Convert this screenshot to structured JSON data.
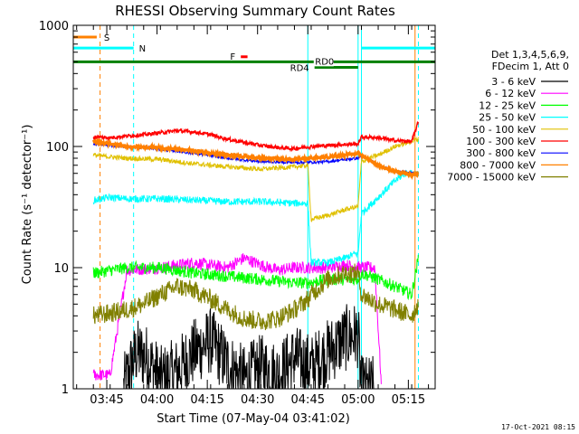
{
  "chart_data": {
    "type": "line",
    "title": "RHESSI Observing Summary Count Rates",
    "xlabel": "Start Time (07-May-04 03:41:02)",
    "ylabel": "Count Rate (s⁻¹ detector⁻¹)",
    "x_units": "minutes since 03:41:02",
    "xlim": [
      -6,
      102
    ],
    "ylim": [
      1,
      1000
    ],
    "yscale": "log",
    "x_ticks": [
      {
        "t": 4,
        "label": "03:45"
      },
      {
        "t": 19,
        "label": "04:00"
      },
      {
        "t": 34,
        "label": "04:15"
      },
      {
        "t": 49,
        "label": "04:30"
      },
      {
        "t": 64,
        "label": "04:45"
      },
      {
        "t": 79,
        "label": "05:00"
      },
      {
        "t": 94,
        "label": "05:15"
      }
    ],
    "y_ticks": [
      {
        "v": 1,
        "label": "1"
      },
      {
        "v": 10,
        "label": "10"
      },
      {
        "v": 100,
        "label": "100"
      },
      {
        "v": 1000,
        "label": "1000"
      }
    ],
    "legend": {
      "placement": "right",
      "header": [
        "Det 1,3,4,5,6,9,",
        "FDecim 1, Att 0"
      ],
      "entries": [
        {
          "label": "3 - 6 keV",
          "color": "#000000"
        },
        {
          "label": "6 - 12 keV",
          "color": "#ff00ff"
        },
        {
          "label": "12 - 25 keV",
          "color": "#00ff00"
        },
        {
          "label": "25 - 50 keV",
          "color": "#00ffff"
        },
        {
          "label": "50 - 100 keV",
          "color": "#e0c000"
        },
        {
          "label": "100 - 300 keV",
          "color": "#ff0000"
        },
        {
          "label": "300 - 800 keV",
          "color": "#0000ff"
        },
        {
          "label": "800 - 7000 keV",
          "color": "#ff8000"
        },
        {
          "label": "7000 - 15000 keV",
          "color": "#808000"
        }
      ]
    },
    "series": [
      {
        "name": "3 - 6 keV",
        "color": "#000000",
        "x": [
          9,
          11,
          13,
          16,
          20,
          25,
          30,
          35,
          40,
          45,
          50,
          55,
          60,
          65,
          70,
          75,
          79,
          80,
          84
        ],
        "y": [
          1,
          1.5,
          2,
          1.8,
          1.2,
          1.4,
          2.0,
          2.5,
          1.6,
          1.2,
          1.5,
          1.3,
          1.8,
          1.5,
          2.0,
          2.6,
          2.8,
          1,
          1
        ]
      },
      {
        "name": "6 - 12 keV",
        "color": "#ff00ff",
        "x": [
          0,
          5,
          10,
          20,
          30,
          40,
          45,
          50,
          55,
          60,
          64,
          70,
          75,
          80,
          84,
          86
        ],
        "y": [
          1.3,
          1.3,
          9.5,
          10,
          11,
          10,
          12,
          10.5,
          9.5,
          10,
          10,
          10,
          10.5,
          10,
          10,
          1
        ]
      },
      {
        "name": "12 - 25 keV",
        "color": "#00ff00",
        "x": [
          0,
          5,
          10,
          20,
          30,
          40,
          50,
          60,
          64,
          70,
          75,
          79,
          80,
          85,
          90,
          95,
          97
        ],
        "y": [
          9,
          9.5,
          10,
          10,
          9,
          8.5,
          8,
          7.5,
          7.5,
          8,
          8,
          8,
          9,
          8,
          7,
          6,
          12
        ]
      },
      {
        "name": "25 - 50 keV",
        "color": "#00ffff",
        "x": [
          0,
          5,
          10,
          20,
          30,
          40,
          50,
          60,
          64,
          65,
          70,
          75,
          78,
          79,
          80,
          85,
          90,
          93,
          97
        ],
        "y": [
          36,
          38,
          37,
          37,
          36,
          35,
          35,
          34,
          34,
          11,
          11,
          12,
          13,
          13,
          28,
          38,
          52,
          60,
          60
        ]
      },
      {
        "name": "50 - 100 keV",
        "color": "#e0c000",
        "x": [
          0,
          5,
          10,
          20,
          30,
          40,
          50,
          60,
          64,
          65,
          70,
          75,
          79,
          80,
          85,
          90,
          95,
          97
        ],
        "y": [
          85,
          82,
          80,
          78,
          72,
          68,
          65,
          68,
          70,
          25,
          27,
          30,
          32,
          75,
          85,
          100,
          110,
          115
        ]
      },
      {
        "name": "100 - 300 keV",
        "color": "#ff0000",
        "x": [
          0,
          5,
          10,
          15,
          20,
          25,
          30,
          35,
          40,
          45,
          50,
          55,
          60,
          65,
          70,
          75,
          79,
          80,
          85,
          90,
          95,
          97
        ],
        "y": [
          120,
          118,
          122,
          125,
          130,
          135,
          132,
          125,
          115,
          108,
          102,
          98,
          96,
          100,
          102,
          104,
          105,
          120,
          118,
          112,
          110,
          160
        ]
      },
      {
        "name": "300 - 800 keV",
        "color": "#0000ff",
        "x": [
          0,
          5,
          10,
          20,
          30,
          40,
          50,
          60,
          64,
          70,
          75,
          79,
          80,
          85,
          90,
          95,
          97
        ],
        "y": [
          105,
          102,
          100,
          95,
          88,
          80,
          75,
          74,
          74,
          75,
          78,
          80,
          85,
          70,
          62,
          60,
          60
        ]
      },
      {
        "name": "800 - 7000 keV",
        "color": "#ff8000",
        "x": [
          0,
          5,
          10,
          20,
          30,
          40,
          50,
          60,
          64,
          70,
          75,
          79,
          80,
          85,
          90,
          95,
          97
        ],
        "y": [
          110,
          105,
          100,
          98,
          92,
          85,
          80,
          78,
          80,
          82,
          85,
          88,
          85,
          70,
          62,
          58,
          60
        ]
      },
      {
        "name": "7000 - 15000 keV",
        "color": "#808000",
        "x": [
          0,
          5,
          10,
          15,
          20,
          25,
          30,
          35,
          40,
          45,
          50,
          55,
          60,
          64,
          65,
          70,
          75,
          79,
          80,
          85,
          90,
          95,
          97
        ],
        "y": [
          4,
          4.2,
          4.5,
          5,
          6,
          7,
          6.5,
          5.5,
          4.5,
          3.8,
          3.6,
          3.8,
          4.5,
          5.5,
          6,
          8,
          9,
          9,
          6,
          5,
          4.5,
          4,
          5
        ]
      }
    ],
    "state_bars": [
      {
        "label": "S",
        "color": "#ff8000",
        "x_start": -6,
        "x_end": 1,
        "y": 800
      },
      {
        "label": "N",
        "color": "#00ffff",
        "x_start": -6,
        "x_end": 12,
        "y": 650
      },
      {
        "label": "N",
        "color": "#00ffff",
        "x_start": 80,
        "x_end": 102,
        "y": 650
      },
      {
        "label": "F",
        "color": "#ff0000",
        "x_start": 44,
        "x_end": 46,
        "y": 550
      },
      {
        "label": "RD0",
        "color": "#008000",
        "x_start": -6,
        "x_end": 102,
        "y": 500
      },
      {
        "label": "RD4",
        "color": "#008000",
        "x_start": 66,
        "x_end": 79,
        "y": 450
      }
    ],
    "vertical_markers": [
      {
        "t": 2,
        "color": "#ff8000",
        "style": "dashed"
      },
      {
        "t": 12,
        "color": "#00ffff",
        "style": "dashed"
      },
      {
        "t": 64,
        "color": "#00ffff",
        "style": "solid"
      },
      {
        "t": 79,
        "color": "#00ffff",
        "style": "solid"
      },
      {
        "t": 80,
        "color": "#00ffff",
        "style": "solid"
      },
      {
        "t": 96,
        "color": "#ff8000",
        "style": "solid"
      },
      {
        "t": 97,
        "color": "#00ffff",
        "style": "dashed"
      }
    ]
  },
  "footer": {
    "timestamp": "17-Oct-2021 08:15"
  }
}
